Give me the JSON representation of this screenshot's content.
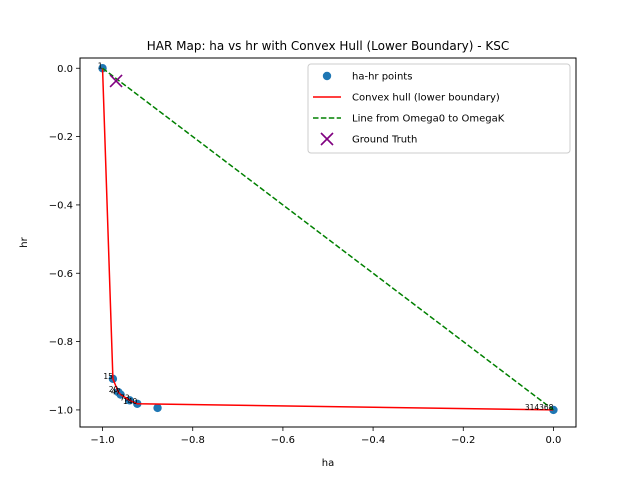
{
  "chart_data": {
    "type": "scatter",
    "title": "HAR Map: ha vs hr with Convex Hull (Lower Boundary) - KSC",
    "xlabel": "ha",
    "ylabel": "hr",
    "xlim": [
      -1.05,
      0.05
    ],
    "ylim": [
      -1.05,
      0.03
    ],
    "xticks": [
      -1.0,
      -0.8,
      -0.6,
      -0.4,
      -0.2,
      0.0
    ],
    "yticks": [
      0.0,
      -0.2,
      -0.4,
      -0.6,
      -0.8,
      -1.0
    ],
    "xtick_labels": [
      "−1.0",
      "−0.8",
      "−0.6",
      "−0.4",
      "−0.2",
      "0.0"
    ],
    "ytick_labels": [
      "0.0",
      "−0.2",
      "−0.4",
      "−0.6",
      "−0.8",
      "−1.0"
    ],
    "grid": false,
    "legend_position": "top-right",
    "colors": {
      "points": "#1f77b4",
      "hull": "#ff0000",
      "omega_line": "#008000",
      "ground_truth": "#800080"
    },
    "series": [
      {
        "name": "ha-hr points",
        "kind": "scatter",
        "points": [
          {
            "x": -1.0,
            "y": 0.0,
            "label": "1"
          },
          {
            "x": -0.977,
            "y": -0.909,
            "label": "15"
          },
          {
            "x": -0.965,
            "y": -0.948,
            "label": "20"
          },
          {
            "x": -0.96,
            "y": -0.955,
            "label": "47"
          },
          {
            "x": -0.94,
            "y": -0.972,
            "label": "73"
          },
          {
            "x": -0.923,
            "y": -0.982,
            "label": "140"
          },
          {
            "x": -0.878,
            "y": -0.994,
            "label": ""
          },
          {
            "x": 0.0,
            "y": -1.0,
            "label": "314368"
          }
        ]
      },
      {
        "name": "Convex hull (lower boundary)",
        "kind": "line",
        "points": [
          {
            "x": -1.0,
            "y": 0.0
          },
          {
            "x": -0.977,
            "y": -0.909
          },
          {
            "x": -0.965,
            "y": -0.948
          },
          {
            "x": -0.96,
            "y": -0.955
          },
          {
            "x": -0.94,
            "y": -0.972
          },
          {
            "x": -0.923,
            "y": -0.982
          },
          {
            "x": 0.0,
            "y": -1.0
          }
        ]
      },
      {
        "name": "Line from Omega0 to OmegaK",
        "kind": "dashed-line",
        "points": [
          {
            "x": -1.0,
            "y": 0.0
          },
          {
            "x": 0.0,
            "y": -1.0
          }
        ]
      },
      {
        "name": "Ground Truth",
        "kind": "marker-x",
        "points": [
          {
            "x": -0.97,
            "y": -0.037
          }
        ]
      }
    ]
  }
}
